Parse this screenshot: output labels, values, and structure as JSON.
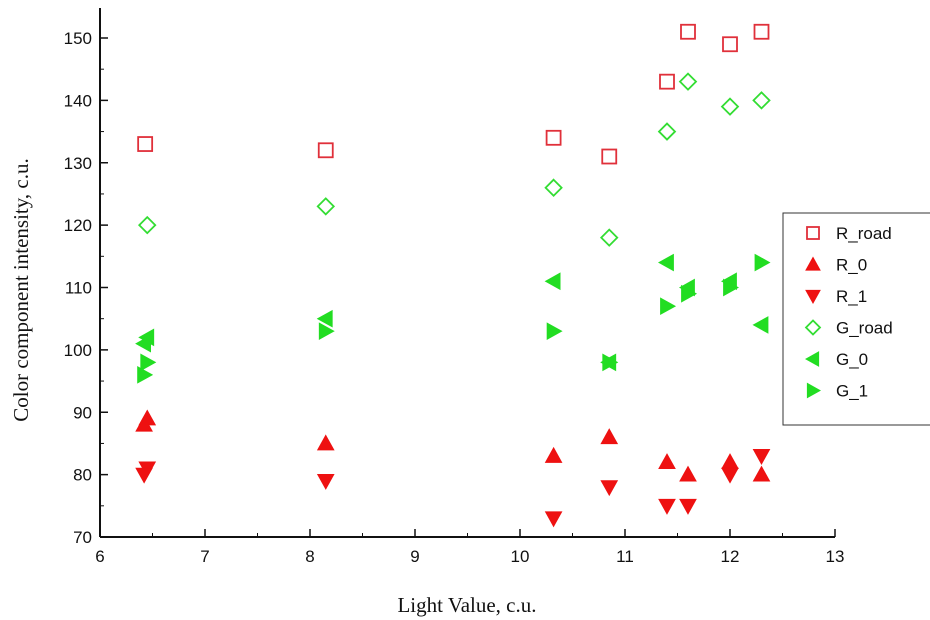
{
  "chart_data": {
    "type": "scatter",
    "title": "",
    "xlabel": "Light Value, c.u.",
    "ylabel": "Color component intensity, c.u.",
    "xlim": [
      6,
      13
    ],
    "ylim": [
      70,
      155
    ],
    "x_ticks": [
      "6",
      "7",
      "8",
      "9",
      "10",
      "11",
      "12",
      "13"
    ],
    "y_ticks": [
      "70",
      "80",
      "90",
      "100",
      "110",
      "120",
      "130",
      "140",
      "150"
    ],
    "grid": false,
    "legend_position": "right",
    "series": [
      {
        "name": "R_road",
        "marker": "square-open",
        "color": "#e0303a",
        "points": [
          [
            6.43,
            133
          ],
          [
            8.15,
            132
          ],
          [
            10.32,
            134
          ],
          [
            10.85,
            131
          ],
          [
            11.4,
            143
          ],
          [
            11.6,
            151
          ],
          [
            12.0,
            149
          ],
          [
            12.3,
            151
          ]
        ]
      },
      {
        "name": "R_0",
        "marker": "triangle-up",
        "color": "#ee1111",
        "points": [
          [
            6.45,
            89
          ],
          [
            6.42,
            88
          ],
          [
            8.15,
            85
          ],
          [
            10.32,
            83
          ],
          [
            10.85,
            86
          ],
          [
            11.4,
            82
          ],
          [
            11.6,
            80
          ],
          [
            12.0,
            82
          ],
          [
            12.3,
            80
          ]
        ]
      },
      {
        "name": "R_1",
        "marker": "triangle-down",
        "color": "#ee1111",
        "points": [
          [
            6.45,
            81
          ],
          [
            6.42,
            80
          ],
          [
            8.15,
            79
          ],
          [
            10.32,
            73
          ],
          [
            10.85,
            78
          ],
          [
            11.4,
            75
          ],
          [
            11.6,
            75
          ],
          [
            12.0,
            80
          ],
          [
            12.3,
            83
          ]
        ]
      },
      {
        "name": "G_road",
        "marker": "diamond-open",
        "color": "#33dd33",
        "points": [
          [
            6.45,
            120
          ],
          [
            8.15,
            123
          ],
          [
            10.32,
            126
          ],
          [
            10.85,
            118
          ],
          [
            11.4,
            135
          ],
          [
            11.6,
            143
          ],
          [
            12.0,
            139
          ],
          [
            12.3,
            140
          ]
        ]
      },
      {
        "name": "G_0",
        "marker": "triangle-left",
        "color": "#22dd22",
        "points": [
          [
            6.45,
            102
          ],
          [
            6.42,
            101
          ],
          [
            8.15,
            105
          ],
          [
            10.32,
            111
          ],
          [
            10.85,
            98
          ],
          [
            11.4,
            114
          ],
          [
            11.6,
            110
          ],
          [
            12.0,
            111
          ],
          [
            12.3,
            104
          ]
        ]
      },
      {
        "name": "G_1",
        "marker": "triangle-right",
        "color": "#22dd22",
        "points": [
          [
            6.45,
            98
          ],
          [
            6.42,
            96
          ],
          [
            8.15,
            103
          ],
          [
            10.32,
            103
          ],
          [
            10.85,
            98
          ],
          [
            11.4,
            107
          ],
          [
            11.6,
            109
          ],
          [
            12.0,
            110
          ],
          [
            12.3,
            114
          ]
        ]
      }
    ]
  }
}
